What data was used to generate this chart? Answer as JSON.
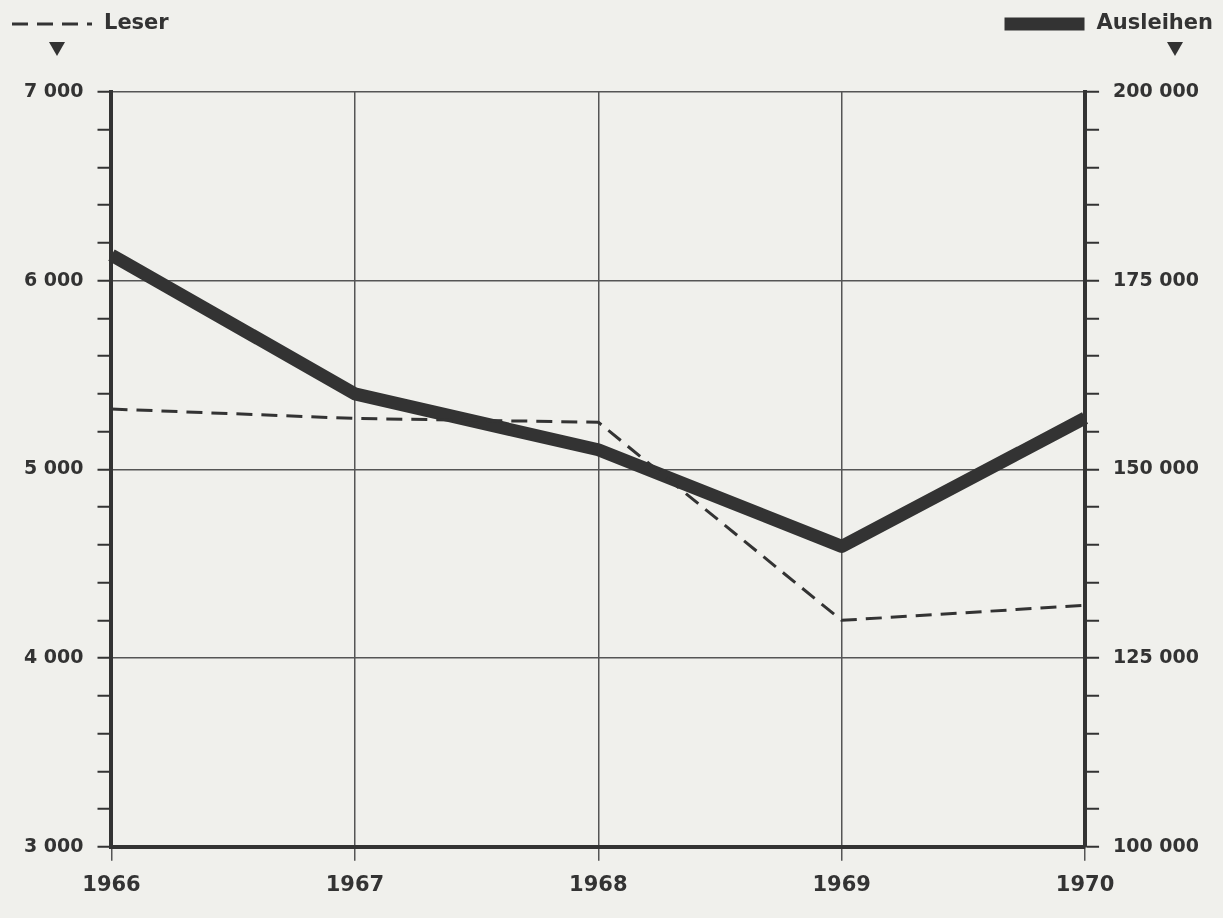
{
  "chart_data": {
    "type": "line",
    "categories": [
      "1966",
      "1967",
      "1968",
      "1969",
      "1970"
    ],
    "series": [
      {
        "name": "Leser",
        "color": "#333333",
        "line_style": "dashed",
        "values": [
          5320,
          5270,
          5250,
          4200,
          4280
        ]
      },
      {
        "name": "Ausleihen",
        "color": "#333333",
        "line_style": "solid",
        "axis": "y2",
        "values": [
          178400,
          160000,
          152600,
          139800,
          156800
        ]
      }
    ],
    "ylim": [
      3000,
      7000
    ],
    "yticks": [
      {
        "value": 3000,
        "label": "3 000"
      },
      {
        "value": 3200,
        "label": null
      },
      {
        "value": 3400,
        "label": null
      },
      {
        "value": 3600,
        "label": null
      },
      {
        "value": 3800,
        "label": null
      },
      {
        "value": 4000,
        "label": "4 000"
      },
      {
        "value": 4200,
        "label": null
      },
      {
        "value": 4400,
        "label": null
      },
      {
        "value": 4600,
        "label": null
      },
      {
        "value": 4800,
        "label": null
      },
      {
        "value": 5000,
        "label": "5 000"
      },
      {
        "value": 5200,
        "label": null
      },
      {
        "value": 5400,
        "label": null
      },
      {
        "value": 5600,
        "label": null
      },
      {
        "value": 5800,
        "label": null
      },
      {
        "value": 6000,
        "label": "6 000"
      },
      {
        "value": 6200,
        "label": null
      },
      {
        "value": 6400,
        "label": null
      },
      {
        "value": 6600,
        "label": null
      },
      {
        "value": 6800,
        "label": null
      },
      {
        "value": 7000,
        "label": "7 000"
      }
    ],
    "y2lim": [
      100000,
      200000
    ],
    "y2ticks": [
      {
        "value": 100000,
        "label": "100 000"
      },
      {
        "value": 105000,
        "label": null
      },
      {
        "value": 110000,
        "label": null
      },
      {
        "value": 115000,
        "label": null
      },
      {
        "value": 120000,
        "label": null
      },
      {
        "value": 125000,
        "label": "125 000"
      },
      {
        "value": 130000,
        "label": null
      },
      {
        "value": 135000,
        "label": null
      },
      {
        "value": 140000,
        "label": null
      },
      {
        "value": 145000,
        "label": null
      },
      {
        "value": 150000,
        "label": "150 000"
      },
      {
        "value": 155000,
        "label": null
      },
      {
        "value": 160000,
        "label": null
      },
      {
        "value": 165000,
        "label": null
      },
      {
        "value": 170000,
        "label": null
      },
      {
        "value": 175000,
        "label": "175 000"
      },
      {
        "value": 180000,
        "label": null
      },
      {
        "value": 185000,
        "label": null
      },
      {
        "value": 190000,
        "label": null
      },
      {
        "value": 195000,
        "label": null
      },
      {
        "value": 200000,
        "label": "200 000"
      }
    ],
    "grid": true,
    "legend": "top",
    "marker": "none"
  }
}
